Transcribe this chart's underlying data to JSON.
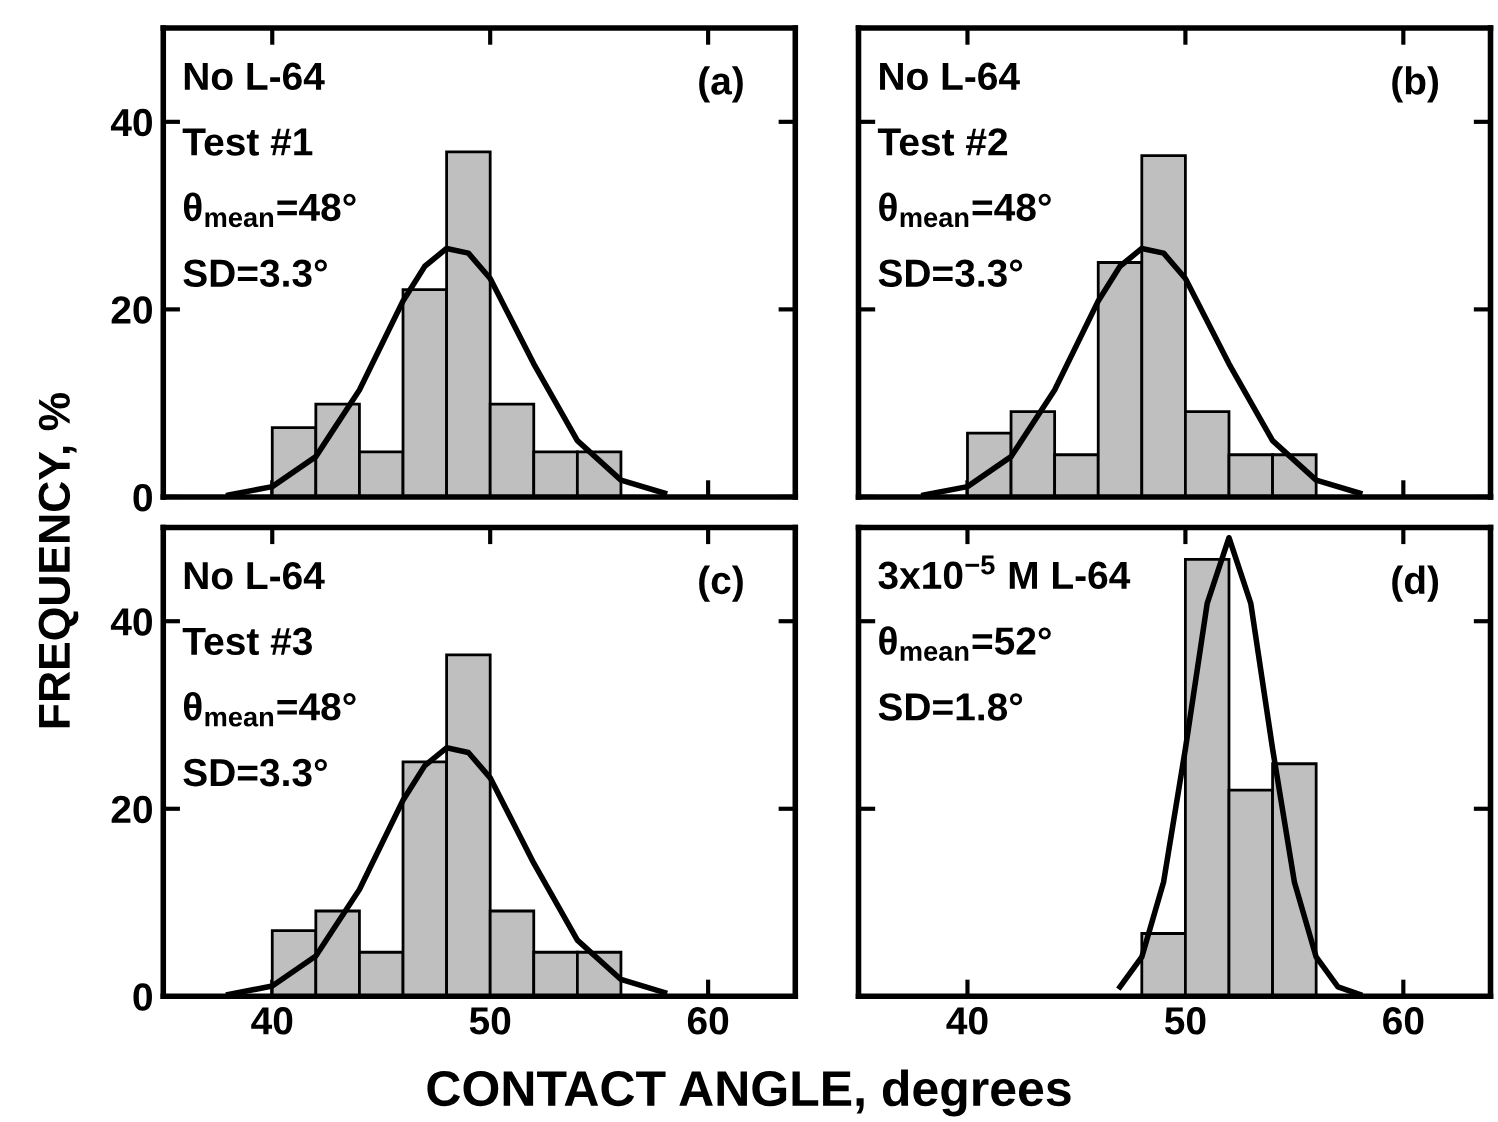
{
  "chart_data": [
    {
      "type": "histogram",
      "ylabel": "FREQUENCY, %",
      "xlim": [
        35,
        64
      ],
      "ylim": [
        0,
        50
      ],
      "xticks": [
        40,
        50,
        60
      ],
      "yticks": [
        0,
        20,
        40
      ],
      "tick_labels": "y",
      "grid": false,
      "annotations": [
        "No L-64",
        "Test #1",
        "θ$_{mean}$=48°",
        "SD=3.3°",
        "(a)"
      ],
      "series": [
        {
          "color": "#bfbfbf",
          "bins": [
            40,
            42,
            44,
            46,
            48,
            50,
            52,
            54,
            56
          ],
          "values": [
            7.4,
            9.9,
            4.8,
            22.1,
            36.8,
            9.9,
            4.8,
            4.8
          ]
        },
        {
          "type": "line",
          "color": "#000000",
          "x": [
            38,
            40,
            42,
            44,
            46,
            47,
            48,
            49,
            50,
            52,
            54,
            56,
            58
          ],
          "values": [
            0.2,
            1.1,
            4.3,
            11.4,
            20.9,
            24.6,
            26.5,
            26.0,
            23.3,
            14.2,
            6.0,
            1.8,
            0.4
          ]
        }
      ]
    },
    {
      "type": "histogram",
      "xlim": [
        35,
        64
      ],
      "ylim": [
        0,
        50
      ],
      "xticks": [
        40,
        50,
        60
      ],
      "yticks": [
        0,
        20,
        40
      ],
      "tick_labels": false,
      "grid": false,
      "annotations": [
        "No L-64",
        "Test #2",
        "θ$_{mean}$=48°",
        "SD=3.3°",
        "(b)"
      ],
      "series": [
        {
          "color": "#bfbfbf",
          "bins": [
            40,
            42,
            44,
            46,
            48,
            50,
            52,
            54,
            56
          ],
          "values": [
            6.8,
            9.1,
            4.5,
            25.0,
            36.4,
            9.1,
            4.5,
            4.5
          ]
        },
        {
          "type": "line",
          "color": "#000000",
          "x": [
            38,
            40,
            42,
            44,
            46,
            47,
            48,
            49,
            50,
            52,
            54,
            56,
            58
          ],
          "values": [
            0.2,
            1.1,
            4.3,
            11.4,
            20.9,
            24.6,
            26.5,
            26.0,
            23.3,
            14.2,
            6.0,
            1.8,
            0.4
          ]
        }
      ]
    },
    {
      "type": "histogram",
      "xlim": [
        35,
        64
      ],
      "ylim": [
        0,
        50
      ],
      "xticks": [
        40,
        50,
        60
      ],
      "yticks": [
        0,
        20,
        40
      ],
      "grid": false,
      "annotations": [
        "No L-64",
        "Test #3",
        "θ$_{mean}$=48°",
        "SD=3.3°",
        "(c)"
      ],
      "series": [
        {
          "color": "#bfbfbf",
          "bins": [
            40,
            42,
            44,
            46,
            48,
            50,
            52,
            54,
            56
          ],
          "values": [
            7.0,
            9.1,
            4.7,
            25.0,
            36.4,
            9.1,
            4.7,
            4.7
          ]
        },
        {
          "type": "line",
          "color": "#000000",
          "x": [
            38,
            40,
            42,
            44,
            46,
            47,
            48,
            49,
            50,
            52,
            54,
            56,
            58
          ],
          "values": [
            0.2,
            1.1,
            4.3,
            11.4,
            20.9,
            24.6,
            26.5,
            26.0,
            23.3,
            14.2,
            6.0,
            1.8,
            0.4
          ]
        }
      ]
    },
    {
      "type": "histogram",
      "xlabel": "CONTACT ANGLE, degrees",
      "xlim": [
        35,
        64
      ],
      "ylim": [
        0,
        50
      ],
      "xticks": [
        40,
        50,
        60
      ],
      "yticks": [
        0,
        20,
        40
      ],
      "tick_labels": "x",
      "grid": false,
      "annotations": [
        "3x10$^{−5}$ M L-64",
        "θ$_{mean}$=52°",
        "SD=1.8°",
        "(d)"
      ],
      "series": [
        {
          "color": "#bfbfbf",
          "bins": [
            48,
            50,
            52,
            54,
            56
          ],
          "values": [
            6.7,
            46.6,
            22.0,
            24.8
          ]
        },
        {
          "type": "line",
          "color": "#000000",
          "x": [
            47,
            48,
            49,
            50,
            51,
            52,
            53,
            54,
            55,
            56,
            57,
            58
          ],
          "values": [
            1.0,
            4.2,
            12.2,
            26.4,
            41.9,
            48.9,
            41.9,
            26.4,
            12.2,
            4.2,
            1.0,
            0.2
          ]
        }
      ]
    }
  ]
}
